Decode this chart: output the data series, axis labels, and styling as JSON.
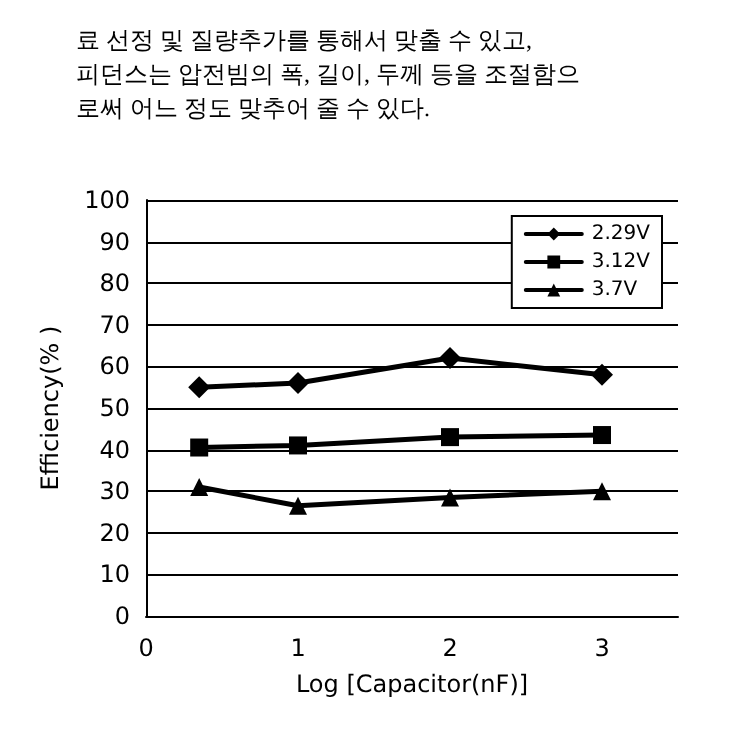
{
  "chart_data": {
    "type": "line",
    "xlabel": "Log [Capacitor(nF)]",
    "ylabel": "Efficiency(% )",
    "annotations": [
      "료 선정 및 질량추가를 통해서 맞출 수 있고,",
      "피던스는 압전빔의 폭, 길이, 두께 등을 조절함으",
      "로써 어느 정도 맞추어 줄 수 있다."
    ],
    "x": [
      0.35,
      1,
      2,
      3
    ],
    "series": [
      {
        "name": "2.29V",
        "color": "#000000",
        "marker": "diamond",
        "values": [
          55,
          56,
          62,
          58
        ]
      },
      {
        "name": "3.12V",
        "color": "#000000",
        "marker": "square",
        "values": [
          40.5,
          41,
          43,
          43.5
        ]
      },
      {
        "name": "3.7V",
        "color": "#000000",
        "marker": "triangle",
        "values": [
          31,
          26.5,
          28.5,
          30
        ]
      }
    ],
    "xlim": [
      0,
      3.5
    ],
    "xticks": [
      0,
      1,
      2,
      3
    ],
    "ylim": [
      0,
      100
    ],
    "yticks": [
      0,
      10,
      20,
      30,
      40,
      50,
      60,
      70,
      80,
      90,
      100
    ],
    "grid": "y",
    "legend": "top right",
    "line_style": "solid"
  }
}
